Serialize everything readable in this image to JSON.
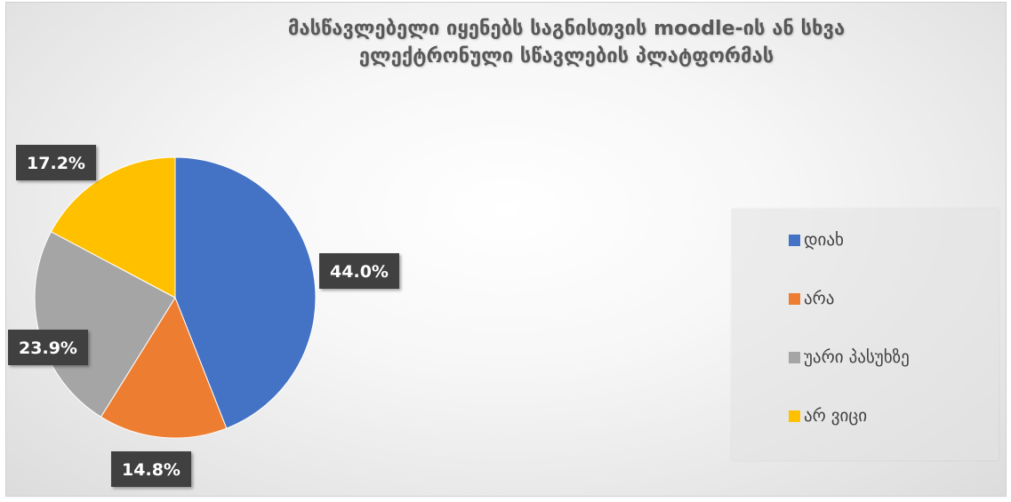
{
  "chart_data": {
    "type": "pie",
    "title": "მასწავლებელი იყენებს საგნისთვის moodle-ის ან სხვა ელექტრონული სწავლების პლატფორმას",
    "title_lines": [
      "მასწავლებელი იყენებს საგნისთვის moodle-ის ან სხვა",
      "ელექტრონული სწავლების პლატფორმას"
    ],
    "legend_position": "right",
    "categories": [
      "დიახ",
      "არა",
      "უარი პასუხზე",
      "არ ვიცი"
    ],
    "values": [
      44.0,
      14.8,
      23.9,
      17.2
    ],
    "labels": [
      "44.0%",
      "14.8%",
      "23.9%",
      "17.2%"
    ],
    "colors": [
      "#4472C4",
      "#ED7D31",
      "#A5A5A5",
      "#FFC000"
    ]
  }
}
